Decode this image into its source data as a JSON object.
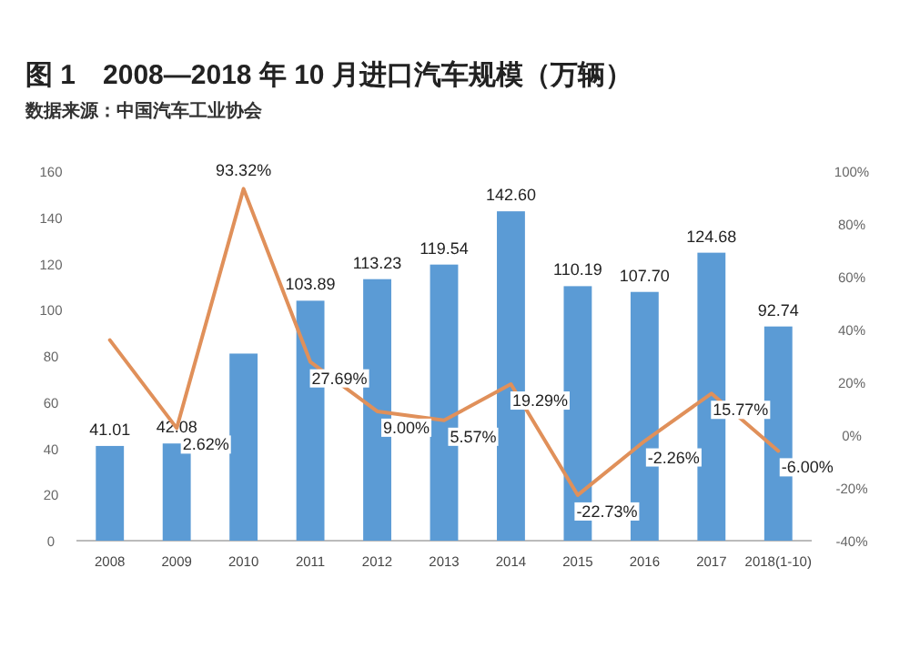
{
  "chart_data": {
    "type": "bar",
    "title": "图 1　2008—2018 年 10 月进口汽车规模（万辆）",
    "subtitle": "数据来源：中国汽车工业协会",
    "categories": [
      "2008",
      "2009",
      "2010",
      "2011",
      "2012",
      "2013",
      "2014",
      "2015",
      "2016",
      "2017",
      "2018(1-10)"
    ],
    "series": [
      {
        "color": "#5b9bd5",
        "values": [
          41.01,
          42.08,
          81,
          103.89,
          113.23,
          119.54,
          142.6,
          110.19,
          107.7,
          124.68,
          92.74
        ],
        "value_labels": [
          "41.01",
          "42.08",
          null,
          "103.89",
          "113.23",
          "119.54",
          "142.60",
          "110.19",
          "107.70",
          "124.68",
          "92.74"
        ]
      },
      {
        "type": "line",
        "axis": "y2",
        "color": "#e0905a",
        "values": [
          36,
          2.62,
          93.32,
          27.69,
          9.0,
          5.57,
          19.29,
          -22.73,
          -2.26,
          15.77,
          -6.0
        ],
        "value_labels": [
          null,
          "2.62%",
          "93.32%",
          "27.69%",
          "9.00%",
          "5.57%",
          "19.29%",
          "-22.73%",
          "-2.26%",
          "15.77%",
          "-6.00%"
        ]
      }
    ],
    "ylim": [
      0,
      160
    ],
    "yticks": [
      0,
      20,
      40,
      60,
      80,
      100,
      120,
      140,
      160
    ],
    "y2lim": [
      -40,
      100
    ],
    "y2ticks": [
      {
        "value": -40,
        "label": "-40%"
      },
      {
        "value": -20,
        "label": "-20%"
      },
      {
        "value": 0,
        "label": "0%"
      },
      {
        "value": 20,
        "label": "20%"
      },
      {
        "value": 40,
        "label": "40%"
      },
      {
        "value": 60,
        "label": "60%"
      },
      {
        "value": 80,
        "label": "80%"
      },
      {
        "value": 100,
        "label": "100%"
      }
    ]
  }
}
